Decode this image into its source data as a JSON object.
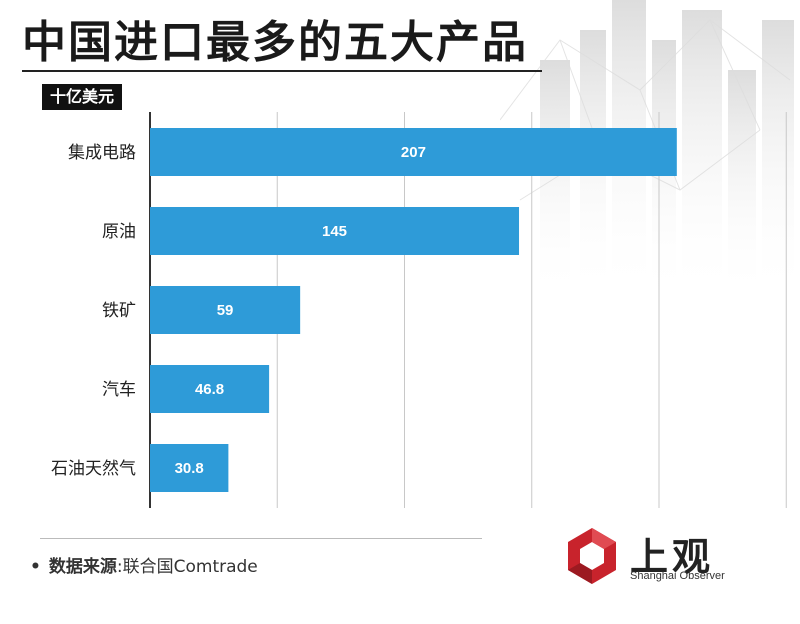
{
  "title": "中国进口最多的五大产品",
  "unit": "十亿美元",
  "source": {
    "label": "数据来源",
    "separator": ":",
    "text": "联合国Comtrade"
  },
  "logo": {
    "name_cn": "上观",
    "name_en": "Shanghai Observer"
  },
  "colors": {
    "bar": "#2e9bd8",
    "grid": "#c8c8c8",
    "bar_label": "#ffffff"
  },
  "chart_data": {
    "type": "bar",
    "orientation": "horizontal",
    "categories": [
      "集成电路",
      "原油",
      "铁矿",
      "汽车",
      "石油天然气"
    ],
    "values": [
      207,
      145,
      59,
      46.8,
      30.8
    ],
    "value_labels": [
      "207",
      "145",
      "59",
      "46.8",
      "30.8"
    ],
    "xlim": [
      0,
      250
    ],
    "grid": true,
    "unit": "十亿美元"
  }
}
